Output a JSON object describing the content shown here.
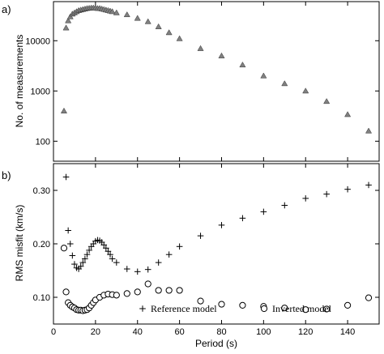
{
  "chart_data": [
    {
      "panel": "a)",
      "type": "scatter",
      "ylabel": "No. of measurements",
      "yscale": "log",
      "ylim": [
        40,
        60000
      ],
      "xlim": [
        0,
        155
      ],
      "yticks": [
        100,
        1000,
        10000
      ],
      "ytick_labels": [
        "100",
        "1000",
        "10000"
      ],
      "marker": "triangle",
      "marker_color": "#808080",
      "series": [
        {
          "x": [
            5,
            6,
            7,
            8,
            9,
            10,
            11,
            12,
            13,
            14,
            15,
            16,
            17,
            18,
            19,
            20,
            21,
            22,
            23,
            24,
            25,
            26,
            27,
            28,
            30,
            35,
            40,
            45,
            50,
            55,
            60,
            70,
            80,
            90,
            100,
            110,
            120,
            130,
            140,
            150
          ],
          "y": [
            400,
            18000,
            25000,
            30000,
            34000,
            36000,
            38000,
            40000,
            41000,
            42000,
            43000,
            44000,
            44500,
            45000,
            45000,
            45000,
            44000,
            44000,
            43000,
            42000,
            41000,
            40000,
            39000,
            38000,
            36000,
            33000,
            28000,
            24000,
            19000,
            14500,
            11000,
            7000,
            5000,
            3300,
            2000,
            1400,
            1000,
            620,
            340,
            160
          ]
        }
      ]
    },
    {
      "panel": "b)",
      "type": "scatter",
      "xlabel": "Period (s)",
      "ylabel": "RMS misfit (km/s)",
      "ylim": [
        0.05,
        0.35
      ],
      "xlim": [
        0,
        155
      ],
      "xticks": [
        0,
        20,
        40,
        60,
        80,
        100,
        120,
        140
      ],
      "xtick_labels": [
        "0",
        "20",
        "40",
        "60",
        "80",
        "100",
        "120",
        "140"
      ],
      "yticks": [
        0.1,
        0.2,
        0.3
      ],
      "ytick_labels": [
        "0.10",
        "0.20",
        "0.30"
      ],
      "series": [
        {
          "name": "Reference model",
          "marker": "plus",
          "x": [
            6,
            7,
            8,
            9,
            10,
            11,
            12,
            13,
            14,
            15,
            16,
            17,
            18,
            19,
            20,
            21,
            22,
            23,
            24,
            25,
            26,
            27,
            28,
            30,
            35,
            40,
            45,
            50,
            55,
            60,
            70,
            80,
            90,
            100,
            110,
            120,
            130,
            140,
            150
          ],
          "y": [
            0.325,
            0.225,
            0.2,
            0.178,
            0.162,
            0.155,
            0.153,
            0.158,
            0.165,
            0.172,
            0.18,
            0.188,
            0.195,
            0.2,
            0.205,
            0.207,
            0.206,
            0.203,
            0.198,
            0.192,
            0.186,
            0.18,
            0.172,
            0.165,
            0.153,
            0.148,
            0.152,
            0.165,
            0.18,
            0.195,
            0.215,
            0.235,
            0.248,
            0.26,
            0.272,
            0.285,
            0.293,
            0.302,
            0.31
          ]
        },
        {
          "name": "Inverted model",
          "marker": "circle",
          "x": [
            5,
            6,
            7,
            8,
            9,
            10,
            11,
            12,
            13,
            14,
            15,
            16,
            17,
            18,
            19,
            20,
            22,
            24,
            26,
            28,
            30,
            35,
            40,
            45,
            50,
            55,
            60,
            70,
            80,
            90,
            100,
            110,
            120,
            130,
            140,
            150
          ],
          "y": [
            0.192,
            0.11,
            0.09,
            0.085,
            0.082,
            0.08,
            0.077,
            0.076,
            0.076,
            0.075,
            0.076,
            0.077,
            0.08,
            0.085,
            0.09,
            0.095,
            0.1,
            0.104,
            0.106,
            0.105,
            0.104,
            0.107,
            0.11,
            0.125,
            0.113,
            0.113,
            0.113,
            0.093,
            0.087,
            0.085,
            0.083,
            0.08,
            0.077,
            0.078,
            0.085,
            0.099
          ]
        }
      ],
      "legend_placement": "bottom"
    }
  ]
}
